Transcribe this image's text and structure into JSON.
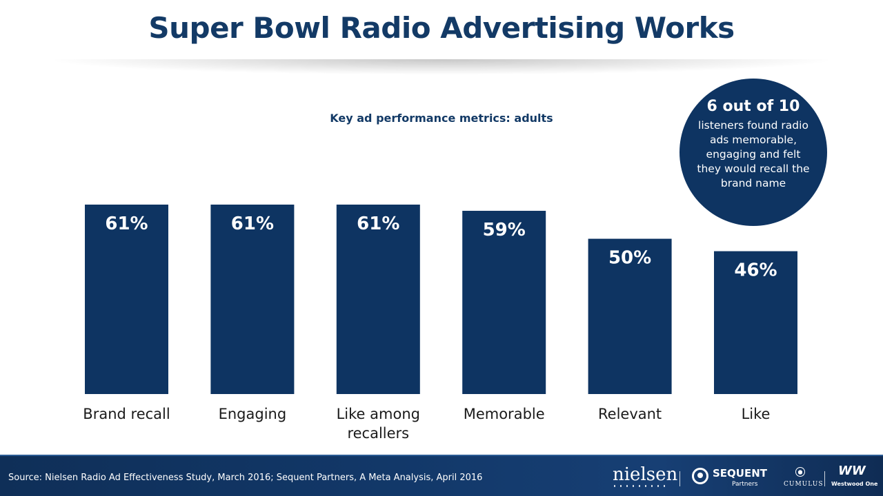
{
  "page": {
    "title": "Super Bowl Radio Advertising Works"
  },
  "chart_data": {
    "type": "bar",
    "title": "Key ad performance metrics: adults",
    "categories": [
      "Brand recall",
      "Engaging",
      "Like among recallers",
      "Memorable",
      "Relevant",
      "Like"
    ],
    "category_lines": [
      [
        "Brand recall"
      ],
      [
        "Engaging"
      ],
      [
        "Like among",
        "recallers"
      ],
      [
        "Memorable"
      ],
      [
        "Relevant"
      ],
      [
        "Like"
      ]
    ],
    "values": [
      61,
      61,
      61,
      59,
      50,
      46
    ],
    "value_labels": [
      "61%",
      "61%",
      "61%",
      "59%",
      "50%",
      "46%"
    ],
    "unit": "%",
    "xlabel": "",
    "ylabel": "",
    "ylim": [
      0,
      61
    ],
    "grid": false,
    "legend": "none",
    "bar_color": "#0e3462",
    "label_color": "#ffffff"
  },
  "callout": {
    "headline": "6 out of 10",
    "text": "listeners found radio ads memorable, engaging and felt they would recall the brand name"
  },
  "footer": {
    "source": "Source: Nielsen Radio Ad Effectiveness Study, March 2016; Sequent Partners, A Meta Analysis, April 2016",
    "logos": {
      "nielsen": "nielsen",
      "sequent": "SEQUENT",
      "sequent_sub": "Partners",
      "cumulus": "CUMULUS",
      "westwood_mark": "WW",
      "westwood": "Westwood One"
    }
  },
  "colors": {
    "title": "#133a66",
    "bar": "#0e3462",
    "footer_bg": "#123869"
  }
}
